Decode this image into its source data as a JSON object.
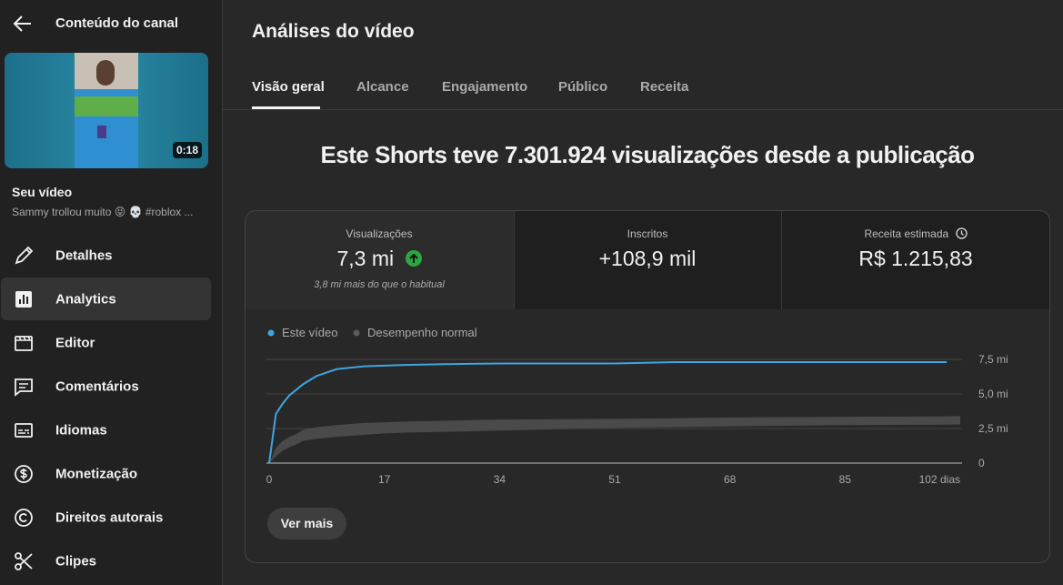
{
  "sidebar": {
    "back_title": "Conteúdo do canal",
    "thumbnail_duration": "0:18",
    "video_label": "Seu vídeo",
    "video_title": "Sammy trollou muito 😝 💀 #roblox ...",
    "nav": [
      "Detalhes",
      "Analytics",
      "Editor",
      "Comentários",
      "Idiomas",
      "Monetização",
      "Direitos autorais",
      "Clipes"
    ]
  },
  "header": {
    "title": "Análises do vídeo",
    "tabs": [
      "Visão geral",
      "Alcance",
      "Engajamento",
      "Público",
      "Receita"
    ]
  },
  "headline": "Este Shorts teve 7.301.924 visualizações desde a publicação",
  "stats": [
    {
      "label": "Visualizações",
      "value": "7,3 mi",
      "note": "3,8 mi mais do que o habitual"
    },
    {
      "label": "Inscritos",
      "value": "+108,9 mil"
    },
    {
      "label": "Receita estimada",
      "value": "R$ 1.215,83"
    }
  ],
  "chart_data": {
    "type": "line",
    "x": [
      0,
      1,
      2,
      3,
      4,
      5,
      7,
      10,
      14,
      17,
      20,
      25,
      34,
      51,
      60,
      68,
      85,
      100,
      102
    ],
    "series": [
      {
        "name": "Este vídeo",
        "color": "#3ea6e0",
        "values": [
          0,
          3.55,
          4.3,
          4.9,
          5.3,
          5.7,
          6.3,
          6.8,
          7.0,
          7.05,
          7.1,
          7.15,
          7.2,
          7.2,
          7.3,
          7.3,
          7.3,
          7.3,
          null
        ]
      },
      {
        "name": "Desempenho normal",
        "color": "#4a4a4a",
        "upper": [
          0,
          1.1,
          1.6,
          1.9,
          2.1,
          2.4,
          2.6,
          2.75,
          2.9,
          2.95,
          3.0,
          3.05,
          3.15,
          3.2,
          3.25,
          3.3,
          3.35,
          3.38,
          3.4
        ],
        "lower": [
          0,
          0.5,
          0.9,
          1.15,
          1.35,
          1.6,
          1.75,
          1.9,
          2.05,
          2.15,
          2.2,
          2.25,
          2.35,
          2.55,
          2.6,
          2.65,
          2.75,
          2.78,
          2.8
        ]
      }
    ],
    "xlim": [
      0,
      102
    ],
    "xticks": [
      0,
      17,
      34,
      51,
      68,
      85,
      {
        "value": 102,
        "label": "102 dias"
      }
    ],
    "ylim": [
      0,
      7.5
    ],
    "yticks": [
      0,
      {
        "value": 2.5,
        "label": "2,5 mi"
      },
      {
        "value": 5,
        "label": "5,0 mi"
      },
      {
        "value": 7.5,
        "label": "7,5 mi"
      }
    ],
    "grid": true
  },
  "button": "Ver mais"
}
